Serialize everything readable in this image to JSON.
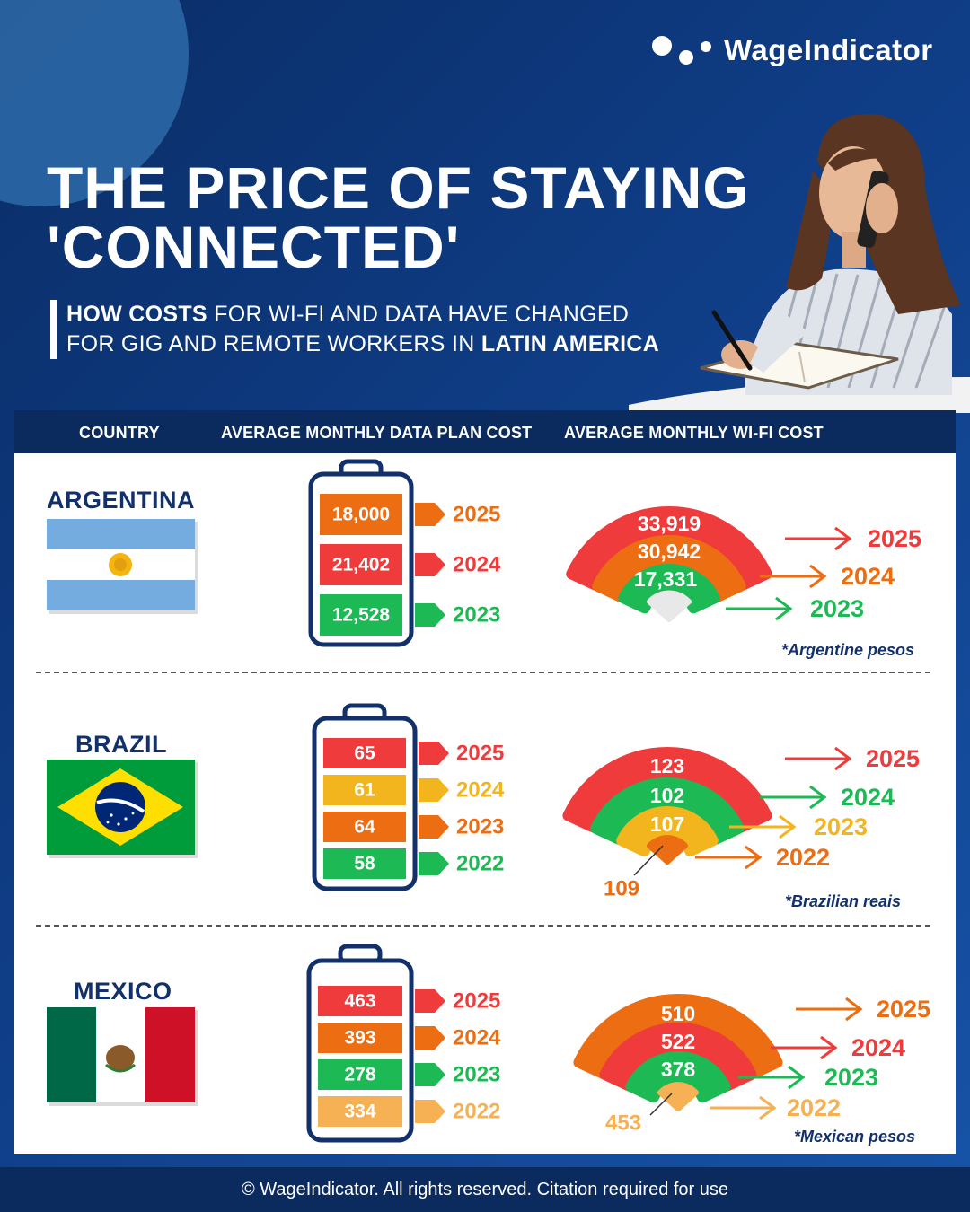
{
  "brand": {
    "logo_text": "WageIndicator"
  },
  "title": {
    "line1": "THE PRICE OF STAYING",
    "line2": "'CONNECTED'"
  },
  "subtitle": {
    "line1_bold": "HOW COSTS",
    "line1_rest": " FOR WI-FI AND DATA HAVE CHANGED",
    "line2_rest": "FOR GIG AND REMOTE WORKERS IN ",
    "line2_bold": "LATIN AMERICA"
  },
  "columns": {
    "country": "COUNTRY",
    "data": "AVERAGE MONTHLY DATA PLAN COST",
    "wifi": "AVERAGE MONTHLY WI-FI COST"
  },
  "colors": {
    "red": "#ef3b3b",
    "orange": "#ec6d12",
    "green": "#1db954",
    "yellow": "#f3b51d",
    "light_orange": "#f6b154",
    "navy": "#12306a"
  },
  "countries": [
    {
      "name": "ARGENTINA",
      "flag": "argentina-flag",
      "note": "*Argentine pesos",
      "data_plan": [
        {
          "value": "18,000",
          "year": "2025",
          "color": "#ec6d12"
        },
        {
          "value": "21,402",
          "year": "2024",
          "color": "#ef3b3b"
        },
        {
          "value": "12,528",
          "year": "2023",
          "color": "#1db954"
        }
      ],
      "wifi": [
        {
          "value": "33,919",
          "year": "2025",
          "color": "#ef3b3b"
        },
        {
          "value": "30,942",
          "year": "2024",
          "color": "#ec6d12"
        },
        {
          "value": "17,331",
          "year": "2023",
          "color": "#1db954"
        }
      ],
      "wifi_dot": {
        "value": "",
        "color": "#e8e8e8"
      }
    },
    {
      "name": "BRAZIL",
      "flag": "brazil-flag",
      "note": "*Brazilian reais",
      "data_plan": [
        {
          "value": "65",
          "year": "2025",
          "color": "#ef3b3b"
        },
        {
          "value": "61",
          "year": "2024",
          "color": "#f3b51d"
        },
        {
          "value": "64",
          "year": "2023",
          "color": "#ec6d12"
        },
        {
          "value": "58",
          "year": "2022",
          "color": "#1db954"
        }
      ],
      "wifi": [
        {
          "value": "123",
          "year": "2025",
          "color": "#ef3b3b"
        },
        {
          "value": "102",
          "year": "2024",
          "color": "#1db954"
        },
        {
          "value": "107",
          "year": "2023",
          "color": "#f3b51d"
        }
      ],
      "wifi_dot": {
        "value": "109",
        "year": "2022",
        "color": "#ec6d12"
      }
    },
    {
      "name": "MEXICO",
      "flag": "mexico-flag",
      "note": "*Mexican  pesos",
      "data_plan": [
        {
          "value": "463",
          "year": "2025",
          "color": "#ef3b3b"
        },
        {
          "value": "393",
          "year": "2024",
          "color": "#ec6d12"
        },
        {
          "value": "278",
          "year": "2023",
          "color": "#1db954"
        },
        {
          "value": "334",
          "year": "2022",
          "color": "#f6b154"
        }
      ],
      "wifi": [
        {
          "value": "510",
          "year": "2025",
          "color": "#ec6d12"
        },
        {
          "value": "522",
          "year": "2024",
          "color": "#ef3b3b"
        },
        {
          "value": "378",
          "year": "2023",
          "color": "#1db954"
        }
      ],
      "wifi_dot": {
        "value": "453",
        "year": "2022",
        "color": "#f6b154"
      }
    }
  ],
  "footer": {
    "text": "© WageIndicator. All rights reserved. Citation required for use"
  }
}
